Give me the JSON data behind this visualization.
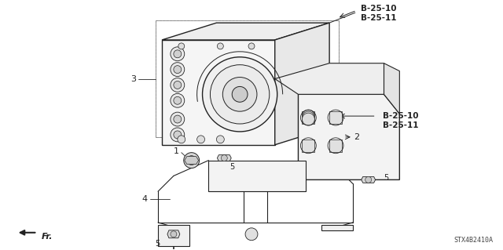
{
  "bg_color": "#ffffff",
  "line_color": "#222222",
  "part_code": "STX4B2410A",
  "callout_top_text": "B-25-10\nB-25-11",
  "callout_right_text": "B-25-10\nB-25-11",
  "label_fontsize": 8,
  "callout_fontsize": 7.5,
  "code_fontsize": 6
}
